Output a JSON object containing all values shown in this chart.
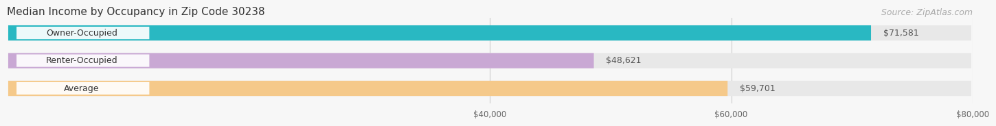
{
  "title": "Median Income by Occupancy in Zip Code 30238",
  "source": "Source: ZipAtlas.com",
  "categories": [
    "Owner-Occupied",
    "Renter-Occupied",
    "Average"
  ],
  "values": [
    71581,
    48621,
    59701
  ],
  "bar_colors": [
    "#29b8c2",
    "#c9a8d4",
    "#f5c98a"
  ],
  "bg_bar_color": "#e8e8e8",
  "xlim": [
    0,
    80000
  ],
  "xticks": [
    40000,
    60000,
    80000
  ],
  "xtick_labels": [
    "$40,000",
    "$60,000",
    "$80,000"
  ],
  "title_fontsize": 11,
  "source_fontsize": 9,
  "bar_label_fontsize": 9,
  "category_fontsize": 9,
  "background_color": "#f7f7f7",
  "fig_width": 14.06,
  "fig_height": 1.96
}
